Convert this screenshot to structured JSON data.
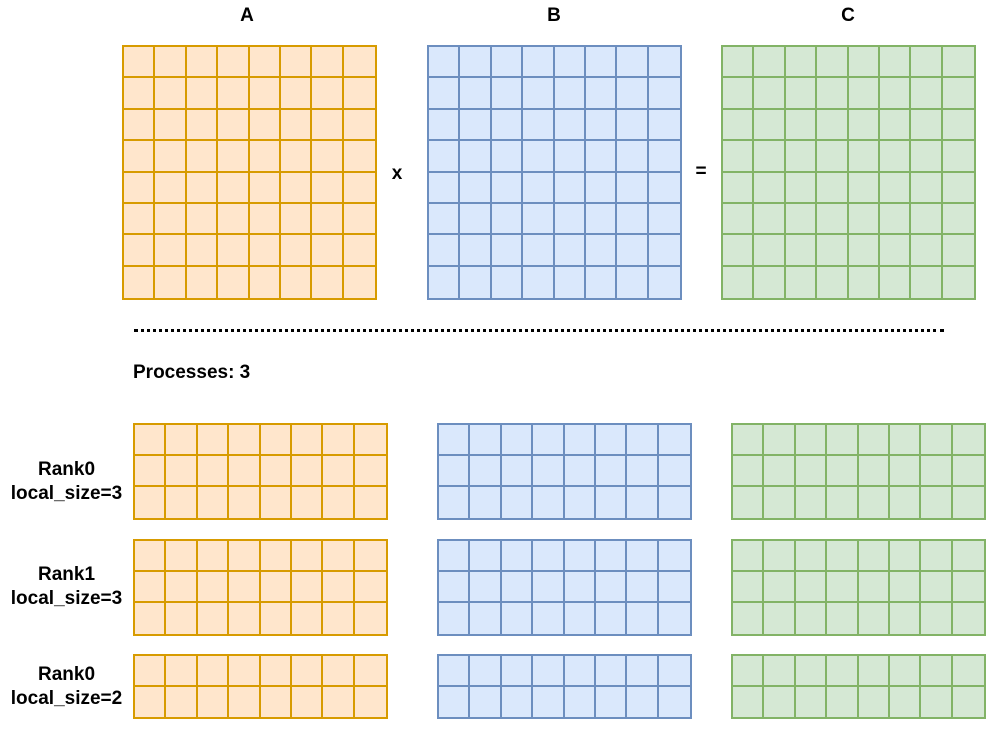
{
  "labels": {
    "a": "A",
    "b": "B",
    "c": "C",
    "times": "x",
    "equals": "="
  },
  "processes": "Processes: 3",
  "ranks": [
    {
      "name": "Rank0",
      "local_size": "local_size=3",
      "rows": 3
    },
    {
      "name": "Rank1",
      "local_size": "local_size=3",
      "rows": 3
    },
    {
      "name": "Rank0",
      "local_size": "local_size=2",
      "rows": 2
    }
  ],
  "matrix": {
    "rows": 8,
    "cols": 8
  },
  "colors": {
    "a_fill": "#ffe6cc",
    "a_stroke": "#d79b00",
    "b_fill": "#dae8fc",
    "b_stroke": "#6c8ebf",
    "c_fill": "#d5e8d4",
    "c_stroke": "#82b366"
  }
}
